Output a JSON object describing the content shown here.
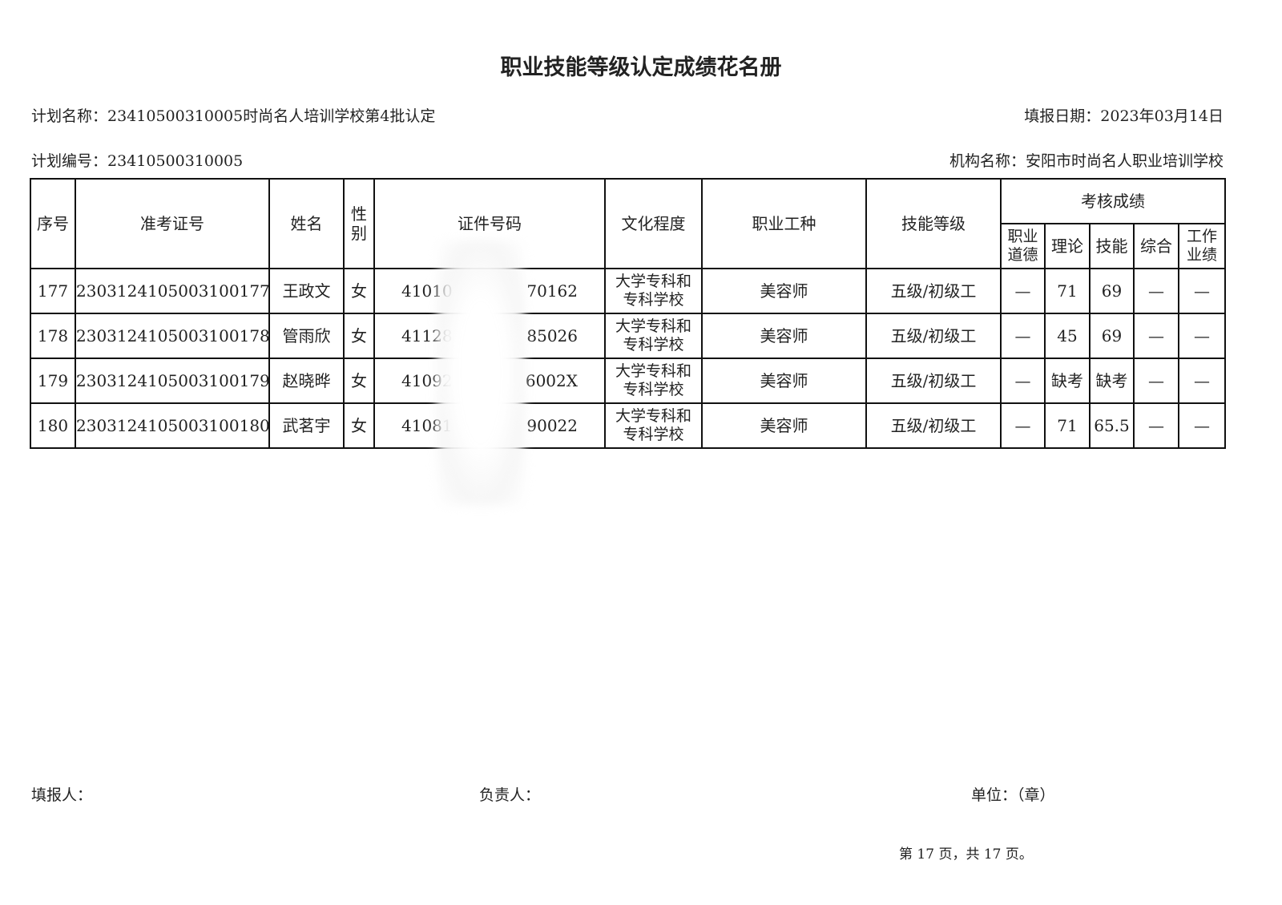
{
  "title": "职业技能等级认定成绩花名册",
  "meta": {
    "plan_name": "计划名称：23410500310005时尚名人培训学校第4批认定",
    "fill_date": "填报日期：2023年03月14日",
    "plan_no": "计划编号：23410500310005",
    "org_name": "机构名称：安阳市时尚名人职业培训学校"
  },
  "table": {
    "headers": {
      "seq": "序号",
      "ticket": "准考证号",
      "name": "姓名",
      "gender_1": "性",
      "gender_2": "别",
      "id_no": "证件号码",
      "education": "文化程度",
      "occupation": "职业工种",
      "level": "技能等级",
      "scores": "考核成绩",
      "ethics_1": "职业",
      "ethics_2": "道德",
      "theory": "理论",
      "skill": "技能",
      "overall": "综合",
      "work_1": "工作",
      "work_2": "业绩"
    },
    "rows": [
      {
        "seq": "177",
        "ticket": "2303124105003100177",
        "name": "王政文",
        "gender": "女",
        "id_prefix": "41010",
        "id_suffix": "70162",
        "edu_1": "大学专科和",
        "edu_2": "专科学校",
        "occupation": "美容师",
        "level": "五级/初级工",
        "ethics": "—",
        "theory": "71",
        "skill": "69",
        "overall": "—",
        "work": "—"
      },
      {
        "seq": "178",
        "ticket": "2303124105003100178",
        "name": "管雨欣",
        "gender": "女",
        "id_prefix": "41128",
        "id_suffix": "85026",
        "edu_1": "大学专科和",
        "edu_2": "专科学校",
        "occupation": "美容师",
        "level": "五级/初级工",
        "ethics": "—",
        "theory": "45",
        "skill": "69",
        "overall": "—",
        "work": "—"
      },
      {
        "seq": "179",
        "ticket": "2303124105003100179",
        "name": "赵晓晔",
        "gender": "女",
        "id_prefix": "41092",
        "id_suffix": "6002X",
        "edu_1": "大学专科和",
        "edu_2": "专科学校",
        "occupation": "美容师",
        "level": "五级/初级工",
        "ethics": "—",
        "theory": "缺考",
        "skill": "缺考",
        "overall": "—",
        "work": "—"
      },
      {
        "seq": "180",
        "ticket": "2303124105003100180",
        "name": "武茗宇",
        "gender": "女",
        "id_prefix": "41081",
        "id_suffix": "90022",
        "edu_1": "大学专科和",
        "edu_2": "专科学校",
        "occupation": "美容师",
        "level": "五级/初级工",
        "ethics": "—",
        "theory": "71",
        "skill": "65.5",
        "overall": "—",
        "work": "—"
      }
    ]
  },
  "footer": {
    "filler": "填报人：",
    "manager": "负责人：",
    "unit": "单位：（章）",
    "page": "第 17 页，共 17 页。"
  }
}
